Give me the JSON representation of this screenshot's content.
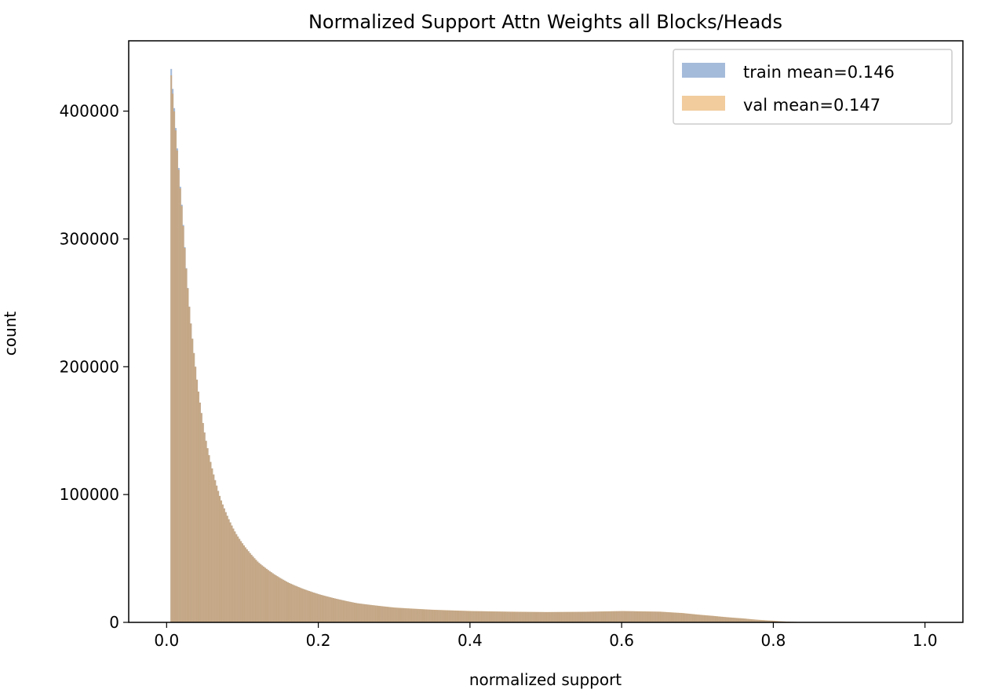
{
  "chart_data": {
    "type": "histogram",
    "title": "Normalized Support Attn Weights all Blocks/Heads",
    "xlabel": "normalized support",
    "ylabel": "count",
    "xlim": [
      -0.05,
      1.05
    ],
    "ylim": [
      0,
      455000
    ],
    "xticks": [
      0.0,
      0.2,
      0.4,
      0.6,
      0.8,
      1.0
    ],
    "xtick_labels": [
      "0.0",
      "0.2",
      "0.4",
      "0.6",
      "0.8",
      "1.0"
    ],
    "yticks": [
      0,
      100000,
      200000,
      300000,
      400000
    ],
    "ytick_labels": [
      "0",
      "100000",
      "200000",
      "300000",
      "400000"
    ],
    "legend_position": "top-right",
    "grid": false,
    "series": [
      {
        "name": "train mean=0.146",
        "color": "#4c78b5",
        "opacity": 0.5,
        "x": [
          0.005,
          0.01,
          0.02,
          0.03,
          0.04,
          0.05,
          0.06,
          0.07,
          0.08,
          0.09,
          0.1,
          0.12,
          0.14,
          0.16,
          0.18,
          0.2,
          0.25,
          0.3,
          0.35,
          0.4,
          0.45,
          0.5,
          0.55,
          0.6,
          0.65,
          0.68,
          0.72,
          0.76,
          0.8,
          0.83,
          0.85,
          1.0
        ],
        "y": [
          433000,
          395000,
          320000,
          240000,
          185000,
          145000,
          118000,
          97000,
          82000,
          70000,
          61000,
          47000,
          38000,
          31000,
          26000,
          22000,
          15000,
          11500,
          9800,
          8800,
          8300,
          8000,
          8200,
          8800,
          8300,
          7200,
          5000,
          3000,
          1200,
          300,
          0,
          0
        ]
      },
      {
        "name": "val mean=0.147",
        "color": "#e69a3c",
        "opacity": 0.5,
        "x": [
          0.005,
          0.01,
          0.02,
          0.03,
          0.04,
          0.05,
          0.06,
          0.07,
          0.08,
          0.09,
          0.1,
          0.12,
          0.14,
          0.16,
          0.18,
          0.2,
          0.25,
          0.3,
          0.35,
          0.4,
          0.45,
          0.5,
          0.55,
          0.6,
          0.65,
          0.68,
          0.72,
          0.76,
          0.8,
          0.83,
          0.85,
          1.0
        ],
        "y": [
          428000,
          393000,
          319000,
          240000,
          185000,
          145000,
          118000,
          97000,
          82000,
          70000,
          61000,
          47000,
          38000,
          31000,
          26000,
          22000,
          15000,
          11600,
          9900,
          8900,
          8400,
          8100,
          8300,
          8900,
          8400,
          7300,
          5100,
          3100,
          1300,
          350,
          0,
          0
        ]
      }
    ]
  }
}
